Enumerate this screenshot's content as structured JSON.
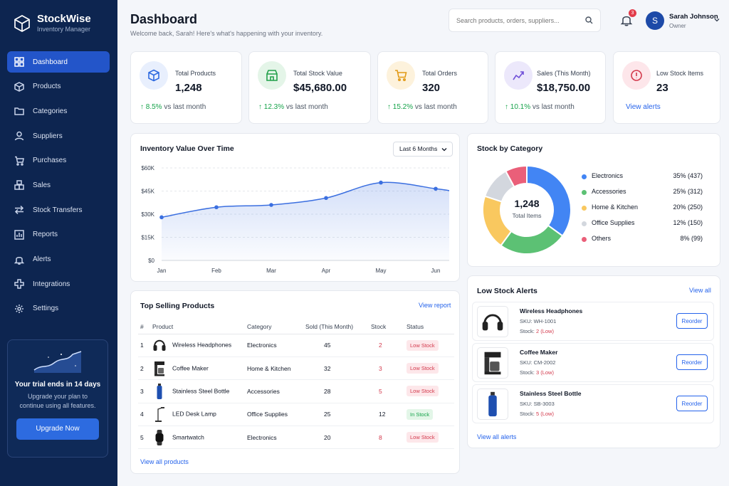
{
  "brand": {
    "name": "StockWise",
    "subtitle": "Inventory Manager"
  },
  "nav": [
    {
      "label": "Dashboard",
      "icon": "dashboard-icon",
      "active": true
    },
    {
      "label": "Products",
      "icon": "box-icon"
    },
    {
      "label": "Categories",
      "icon": "folder-icon"
    },
    {
      "label": "Suppliers",
      "icon": "user-icon"
    },
    {
      "label": "Purchases",
      "icon": "cart-icon"
    },
    {
      "label": "Sales",
      "icon": "boxes-icon"
    },
    {
      "label": "Stock Transfers",
      "icon": "transfer-icon"
    },
    {
      "label": "Reports",
      "icon": "bar-chart-icon"
    },
    {
      "label": "Alerts",
      "icon": "bell-icon"
    },
    {
      "label": "Integrations",
      "icon": "puzzle-icon"
    },
    {
      "label": "Settings",
      "icon": "gear-icon"
    }
  ],
  "trial": {
    "title": "Your trial ends in 14 days",
    "subtitle": "Upgrade your plan to continue using all features.",
    "button": "Upgrade Now"
  },
  "header": {
    "title": "Dashboard",
    "subtitle": "Welcome back, Sarah! Here's what's happening with your inventory."
  },
  "search": {
    "placeholder": "Search products, orders, suppliers..."
  },
  "notifications": {
    "count": "3"
  },
  "user": {
    "initial": "S",
    "name": "Sarah Johnson",
    "role": "Owner"
  },
  "stats": {
    "total_products": {
      "label": "Total Products",
      "value": "1,248",
      "delta": "8.5%",
      "suffix": "vs last month"
    },
    "stock_value": {
      "label": "Total Stock Value",
      "value": "$45,680.00",
      "delta": "12.3%",
      "suffix": "vs last month"
    },
    "total_orders": {
      "label": "Total Orders",
      "value": "320",
      "delta": "15.2%",
      "suffix": "vs last month"
    },
    "sales_month": {
      "label": "Sales (This Month)",
      "value": "$18,750.00",
      "delta": "10.1%",
      "suffix": "vs last month"
    },
    "low_stock": {
      "label": "Low Stock Items",
      "value": "23",
      "link": "View alerts"
    }
  },
  "inventory_chart": {
    "title": "Inventory Value Over Time",
    "range_label": "Last 6 Months",
    "chart_data": {
      "type": "area",
      "x": [
        "Jan",
        "Feb",
        "Mar",
        "Apr",
        "May",
        "Jun"
      ],
      "series": [
        {
          "values": [
            28000,
            34500,
            36000,
            40500,
            50500,
            46500
          ]
        }
      ],
      "ylim": [
        0,
        60000
      ],
      "yticks": [
        "$0",
        "$15K",
        "$30K",
        "$45K",
        "$60K"
      ],
      "grid": true,
      "color": "#3b6fe0"
    }
  },
  "category_chart": {
    "title": "Stock by Category",
    "center_value": "1,248",
    "center_label": "Total Items",
    "chart_data": {
      "type": "pie",
      "donut": true,
      "slices": [
        {
          "name": "Electronics",
          "value": 437,
          "pct": "35% (437)",
          "color": "#4285f4"
        },
        {
          "name": "Accessories",
          "value": 312,
          "pct": "25% (312)",
          "color": "#5cc174"
        },
        {
          "name": "Home & Kitchen",
          "value": 250,
          "pct": "20% (250)",
          "color": "#f9c85f"
        },
        {
          "name": "Office Supplies",
          "value": 150,
          "pct": "12% (150)",
          "color": "#d3d7de"
        },
        {
          "name": "Others",
          "value": 99,
          "pct": "8% (99)",
          "color": "#ea5f79"
        }
      ]
    }
  },
  "top_products": {
    "title": "Top Selling Products",
    "link": "View report",
    "columns": [
      "#",
      "Product",
      "Category",
      "Sold (This Month)",
      "Stock",
      "Status"
    ],
    "rows": [
      {
        "rank": "1",
        "name": "Wireless Headphones",
        "category": "Electronics",
        "sold": "45",
        "stock": "2",
        "status": "Low Stock",
        "low": true,
        "thumb": "headphones-icon"
      },
      {
        "rank": "2",
        "name": "Coffee Maker",
        "category": "Home & Kitchen",
        "sold": "32",
        "stock": "3",
        "status": "Low Stock",
        "low": true,
        "thumb": "coffee-maker-icon"
      },
      {
        "rank": "3",
        "name": "Stainless Steel Bottle",
        "category": "Accessories",
        "sold": "28",
        "stock": "5",
        "status": "Low Stock",
        "low": true,
        "thumb": "bottle-icon"
      },
      {
        "rank": "4",
        "name": "LED Desk Lamp",
        "category": "Office Supplies",
        "sold": "25",
        "stock": "12",
        "status": "In Stock",
        "low": false,
        "thumb": "lamp-icon"
      },
      {
        "rank": "5",
        "name": "Smartwatch",
        "category": "Electronics",
        "sold": "20",
        "stock": "8",
        "status": "Low Stock",
        "low": true,
        "thumb": "watch-icon"
      }
    ],
    "footer_link": "View all products"
  },
  "low_stock_alerts": {
    "title": "Low Stock Alerts",
    "link": "View all",
    "items": [
      {
        "name": "Wireless Headphones",
        "sku": "SKU: WH-1001",
        "stock_label": "Stock:",
        "stock": "2 (Low)",
        "button": "Reorder"
      },
      {
        "name": "Coffee Maker",
        "sku": "SKU: CM-2002",
        "stock_label": "Stock:",
        "stock": "3 (Low)",
        "button": "Reorder"
      },
      {
        "name": "Stainless Steel Bottle",
        "sku": "SKU: SB-3003",
        "stock_label": "Stock:",
        "stock": "5 (Low)",
        "button": "Reorder"
      }
    ],
    "footer_link": "View all alerts"
  }
}
